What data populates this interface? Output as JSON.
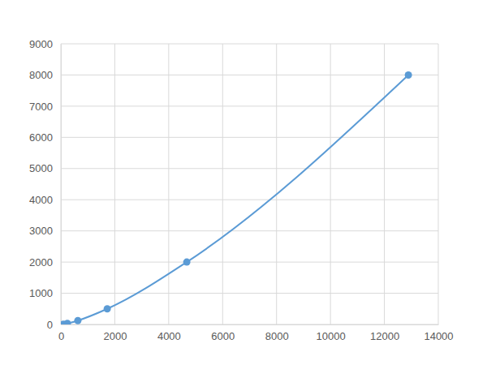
{
  "chart_data": {
    "type": "line",
    "x": [
      90,
      240,
      630,
      1720,
      4670,
      12890
    ],
    "values": [
      7.8,
      31.25,
      125,
      500,
      2000,
      8000
    ],
    "color": "#5b9bd5",
    "marker": "circle",
    "line_style": "smooth",
    "xlim": [
      0,
      14000
    ],
    "xticks": [
      0,
      2000,
      4000,
      6000,
      8000,
      10000,
      12000,
      14000
    ],
    "ylim": [
      0,
      9000
    ],
    "yticks": [
      0,
      1000,
      2000,
      3000,
      4000,
      5000,
      6000,
      7000,
      8000,
      9000
    ],
    "grid": true
  }
}
